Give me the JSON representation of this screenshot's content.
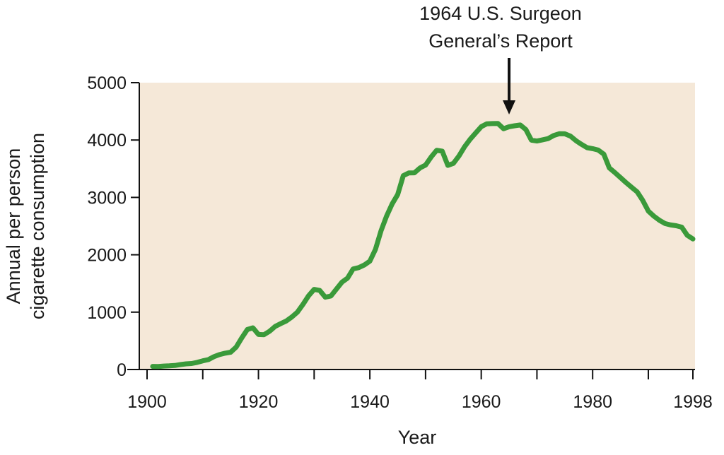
{
  "chart_data": {
    "type": "line",
    "title": "",
    "xlabel": "Year",
    "ylabel_lines": [
      "Annual per person",
      "cigarette consumption"
    ],
    "xlim": [
      1898,
      1998
    ],
    "ylim": [
      0,
      5000
    ],
    "xticks": [
      1900,
      1920,
      1940,
      1960,
      1980,
      1998
    ],
    "yticks": [
      0,
      1000,
      2000,
      3000,
      4000,
      5000
    ],
    "grid": false,
    "plot_background": "#f5e8d8",
    "series": [
      {
        "name": "Annual per person cigarette consumption",
        "color": "#3a9a3a",
        "x": [
          1901,
          1902,
          1903,
          1904,
          1905,
          1906,
          1907,
          1908,
          1909,
          1910,
          1911,
          1912,
          1913,
          1914,
          1915,
          1916,
          1917,
          1918,
          1919,
          1920,
          1921,
          1922,
          1923,
          1924,
          1925,
          1926,
          1927,
          1928,
          1929,
          1930,
          1931,
          1932,
          1933,
          1934,
          1935,
          1936,
          1937,
          1938,
          1939,
          1940,
          1941,
          1942,
          1943,
          1944,
          1945,
          1946,
          1947,
          1948,
          1949,
          1950,
          1951,
          1952,
          1953,
          1954,
          1955,
          1956,
          1957,
          1958,
          1959,
          1960,
          1961,
          1962,
          1963,
          1964,
          1965,
          1966,
          1967,
          1968,
          1969,
          1970,
          1971,
          1972,
          1973,
          1974,
          1975,
          1976,
          1977,
          1978,
          1979,
          1980,
          1981,
          1982,
          1983,
          1984,
          1985,
          1986,
          1987,
          1988,
          1989,
          1990,
          1991,
          1992,
          1993,
          1994,
          1995,
          1996,
          1997,
          1998
        ],
        "values": [
          54,
          53,
          60,
          64,
          70,
          86,
          99,
          105,
          125,
          151,
          173,
          223,
          260,
          285,
          302,
          390,
          550,
          697,
          727,
          611,
          607,
          668,
          751,
          801,
          846,
          916,
          1001,
          1137,
          1285,
          1396,
          1378,
          1261,
          1281,
          1401,
          1524,
          1594,
          1754,
          1776,
          1822,
          1889,
          2094,
          2418,
          2672,
          2885,
          3050,
          3379,
          3427,
          3429,
          3513,
          3564,
          3705,
          3822,
          3806,
          3558,
          3594,
          3722,
          3882,
          4012,
          4123,
          4233,
          4282,
          4287,
          4288,
          4197,
          4232,
          4249,
          4262,
          4183,
          3998,
          3983,
          4004,
          4025,
          4079,
          4110,
          4108,
          4069,
          3989,
          3925,
          3867,
          3850,
          3825,
          3754,
          3514,
          3432,
          3345,
          3257,
          3176,
          3096,
          2947,
          2761,
          2672,
          2601,
          2544,
          2520,
          2506,
          2481,
          2339,
          2276
        ]
      }
    ],
    "annotations": [
      {
        "lines": [
          "1964 U.S. Surgeon",
          "General’s Report"
        ],
        "x": 1965,
        "arrow": true
      }
    ]
  }
}
